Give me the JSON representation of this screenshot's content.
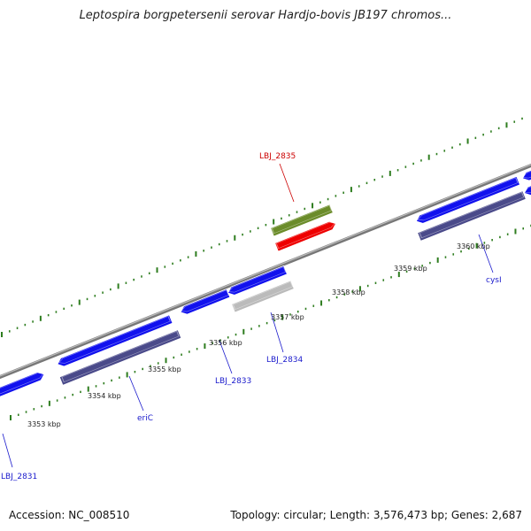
{
  "title": "Leptospira borgpetersenii serovar Hardjo-bovis JB197 chromos...",
  "footer": {
    "accession_label": "Accession: NC_008510",
    "summary": "Topology: circular; Length: 3,576,473 bp; Genes: 2,687"
  },
  "colors": {
    "backbone": "#888888",
    "tick": "#2e7d1f",
    "gene_forward": "#1111ee",
    "gene_reverse": "#4a4a8a",
    "gene_highlight": "#ee0000",
    "gene_olive": "#6b8c2a",
    "gene_grey": "#bbbbbb",
    "label_blue": "#1a1acc",
    "label_red": "#cc0000"
  },
  "scale": {
    "ticks": [
      {
        "label": "3353 kbp"
      },
      {
        "label": "3354 kbp"
      },
      {
        "label": "3355 kbp"
      },
      {
        "label": "3356 kbp"
      },
      {
        "label": "3357 kbp"
      },
      {
        "label": "3358 kbp"
      },
      {
        "label": "3359 kbp"
      },
      {
        "label": "3360 kbp"
      }
    ]
  },
  "gene_labels": [
    {
      "name": "LBJ_2831"
    },
    {
      "name": "eriC"
    },
    {
      "name": "LBJ_2833"
    },
    {
      "name": "LBJ_2834"
    },
    {
      "name": "LBJ_2835"
    },
    {
      "name": "cysI"
    }
  ]
}
